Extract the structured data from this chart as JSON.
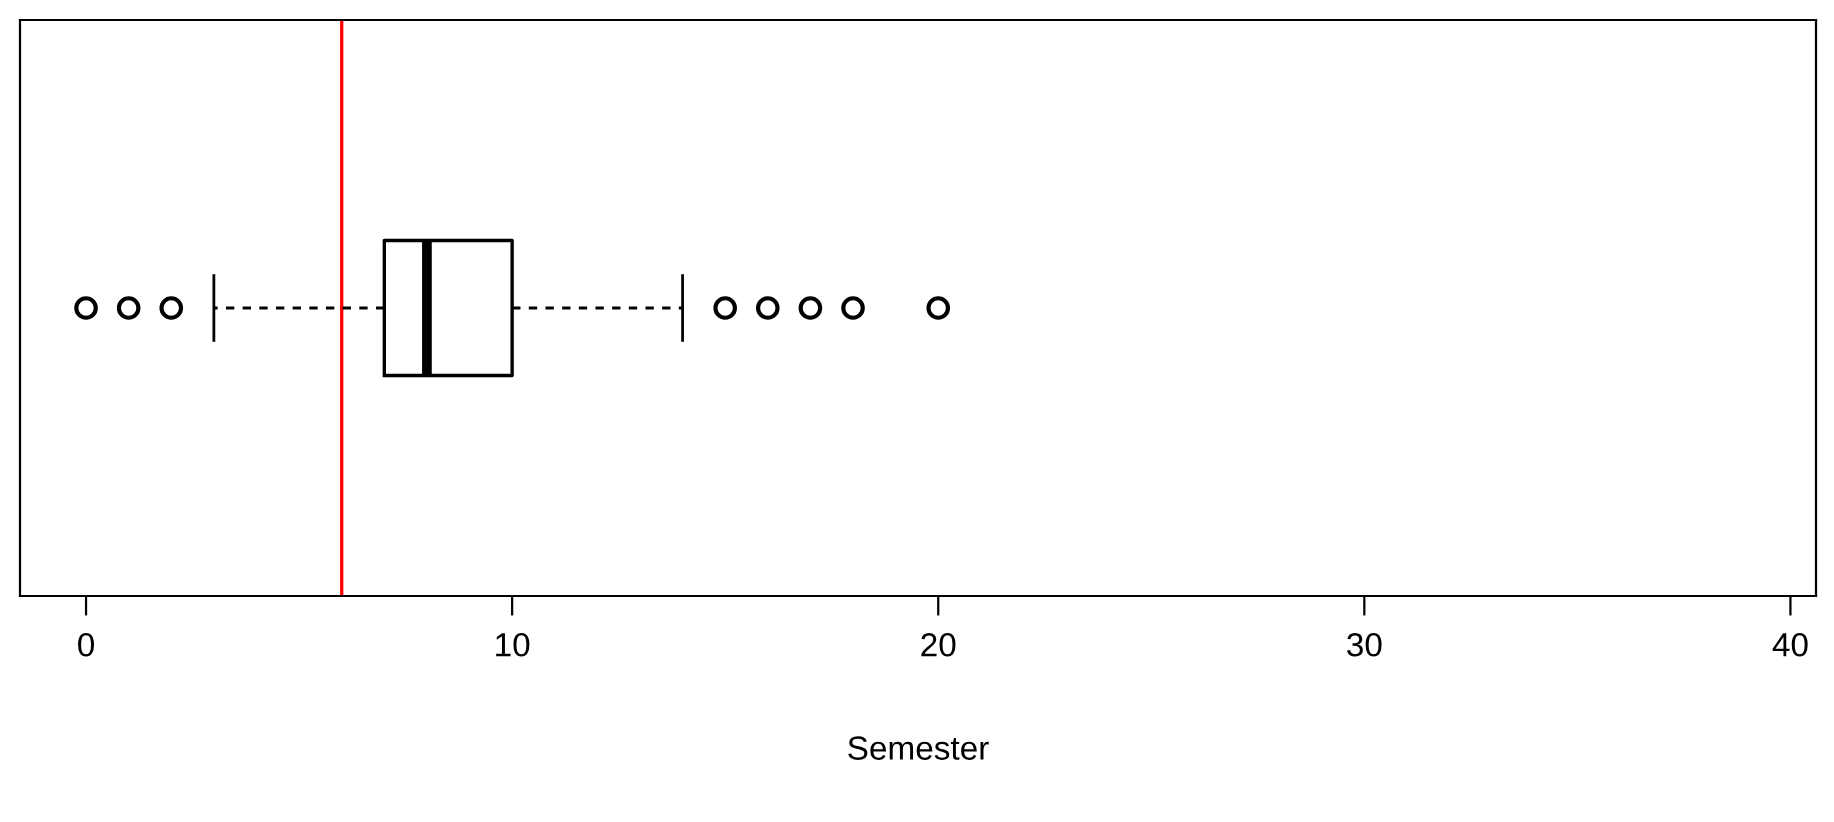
{
  "chart_data": {
    "type": "box",
    "orientation": "horizontal",
    "xlabel": "Semester",
    "categories": [
      null
    ],
    "boxes": [
      {
        "low": 3,
        "q1": 7,
        "median": 8,
        "q3": 10,
        "high": 14,
        "outliers": [
          0,
          1,
          2,
          15,
          16,
          17,
          18,
          20
        ]
      }
    ],
    "xlim": [
      -1.55,
      40.6
    ],
    "xticks": [
      0,
      10,
      20,
      30,
      40
    ],
    "tick_labels": "x",
    "grid": false,
    "ref_lines": [
      {
        "axis": "x",
        "value": 6,
        "color": "#ff0000"
      }
    ]
  }
}
